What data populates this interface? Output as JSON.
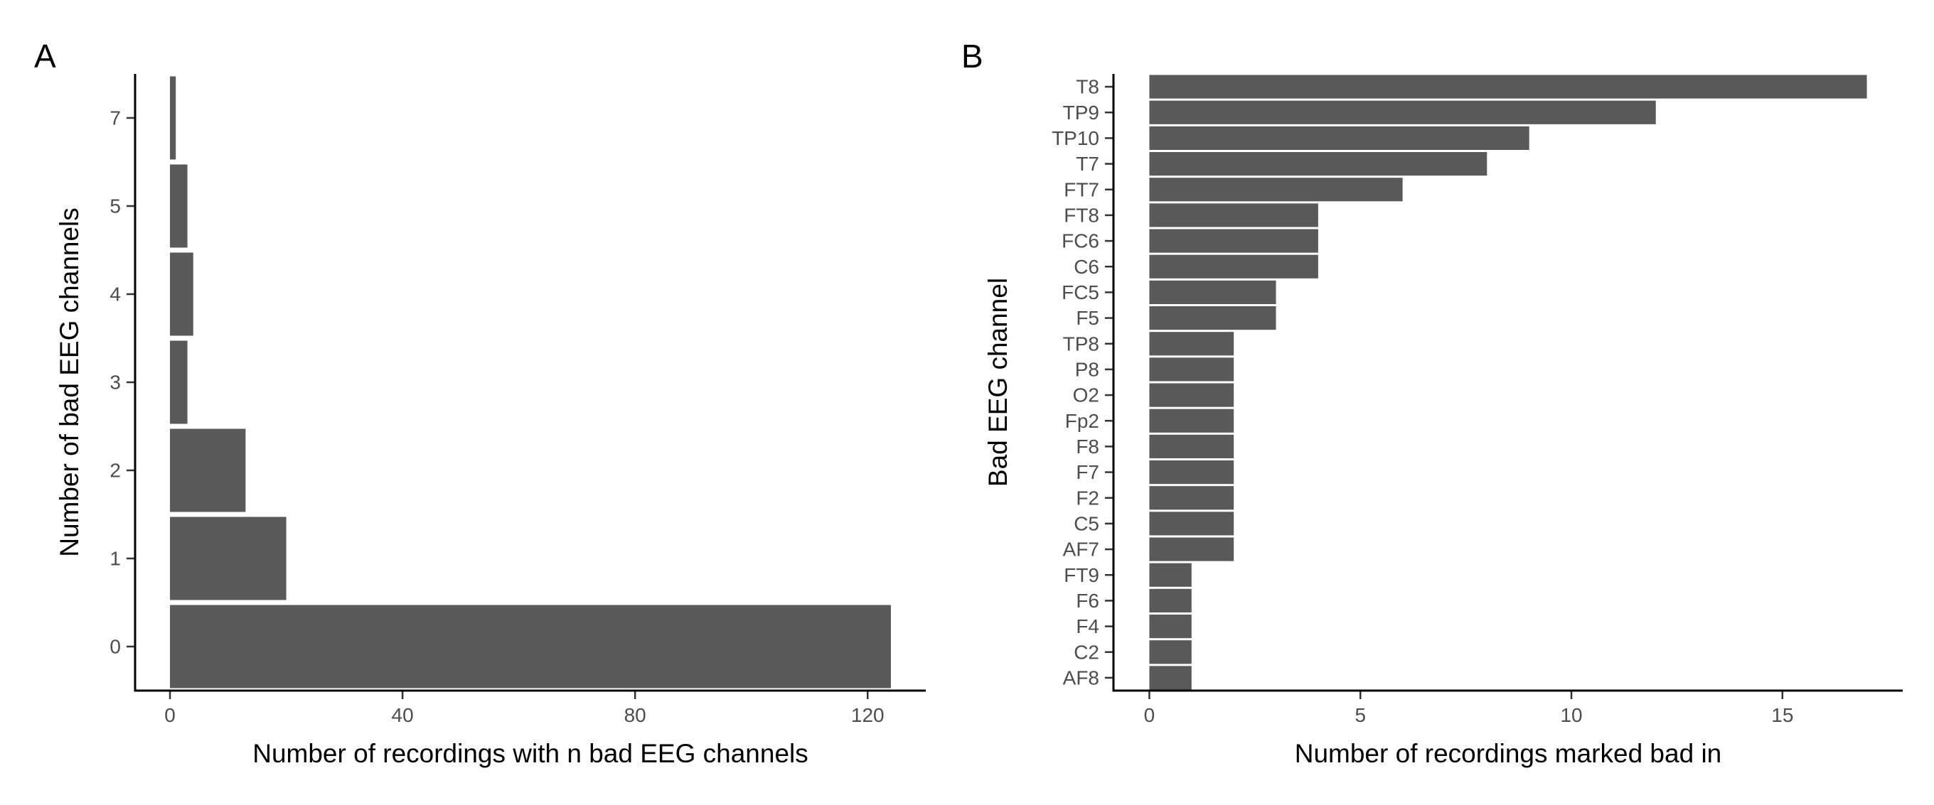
{
  "bar_color": "#595959",
  "chart_data": [
    {
      "type": "bar",
      "orientation": "horizontal",
      "panel": "A",
      "categories": [
        "0",
        "1",
        "2",
        "3",
        "4",
        "5",
        "7"
      ],
      "values": [
        124,
        20,
        13,
        3,
        4,
        3,
        1
      ],
      "xlabel": "Number of recordings with n bad EEG channels",
      "ylabel": "Number of bad EEG channels",
      "xlim": [
        -6,
        130
      ],
      "xticks": [
        "0",
        "40",
        "80",
        "120"
      ],
      "grid": false
    },
    {
      "type": "bar",
      "orientation": "horizontal",
      "panel": "B",
      "categories": [
        "AF8",
        "C2",
        "F4",
        "F6",
        "FT9",
        "AF7",
        "C5",
        "F2",
        "F7",
        "F8",
        "Fp2",
        "O2",
        "P8",
        "TP8",
        "F5",
        "FC5",
        "C6",
        "FC6",
        "FT8",
        "FT7",
        "T7",
        "TP10",
        "TP9",
        "T8"
      ],
      "values": [
        1,
        1,
        1,
        1,
        1,
        2,
        2,
        2,
        2,
        2,
        2,
        2,
        2,
        2,
        3,
        3,
        4,
        4,
        4,
        6,
        8,
        9,
        12,
        17
      ],
      "xlabel": "Number of recordings marked bad in",
      "ylabel": "Bad EEG channel",
      "xlim": [
        -0.85,
        17.85
      ],
      "xticks": [
        "0",
        "5",
        "10",
        "15"
      ],
      "grid": false
    }
  ]
}
